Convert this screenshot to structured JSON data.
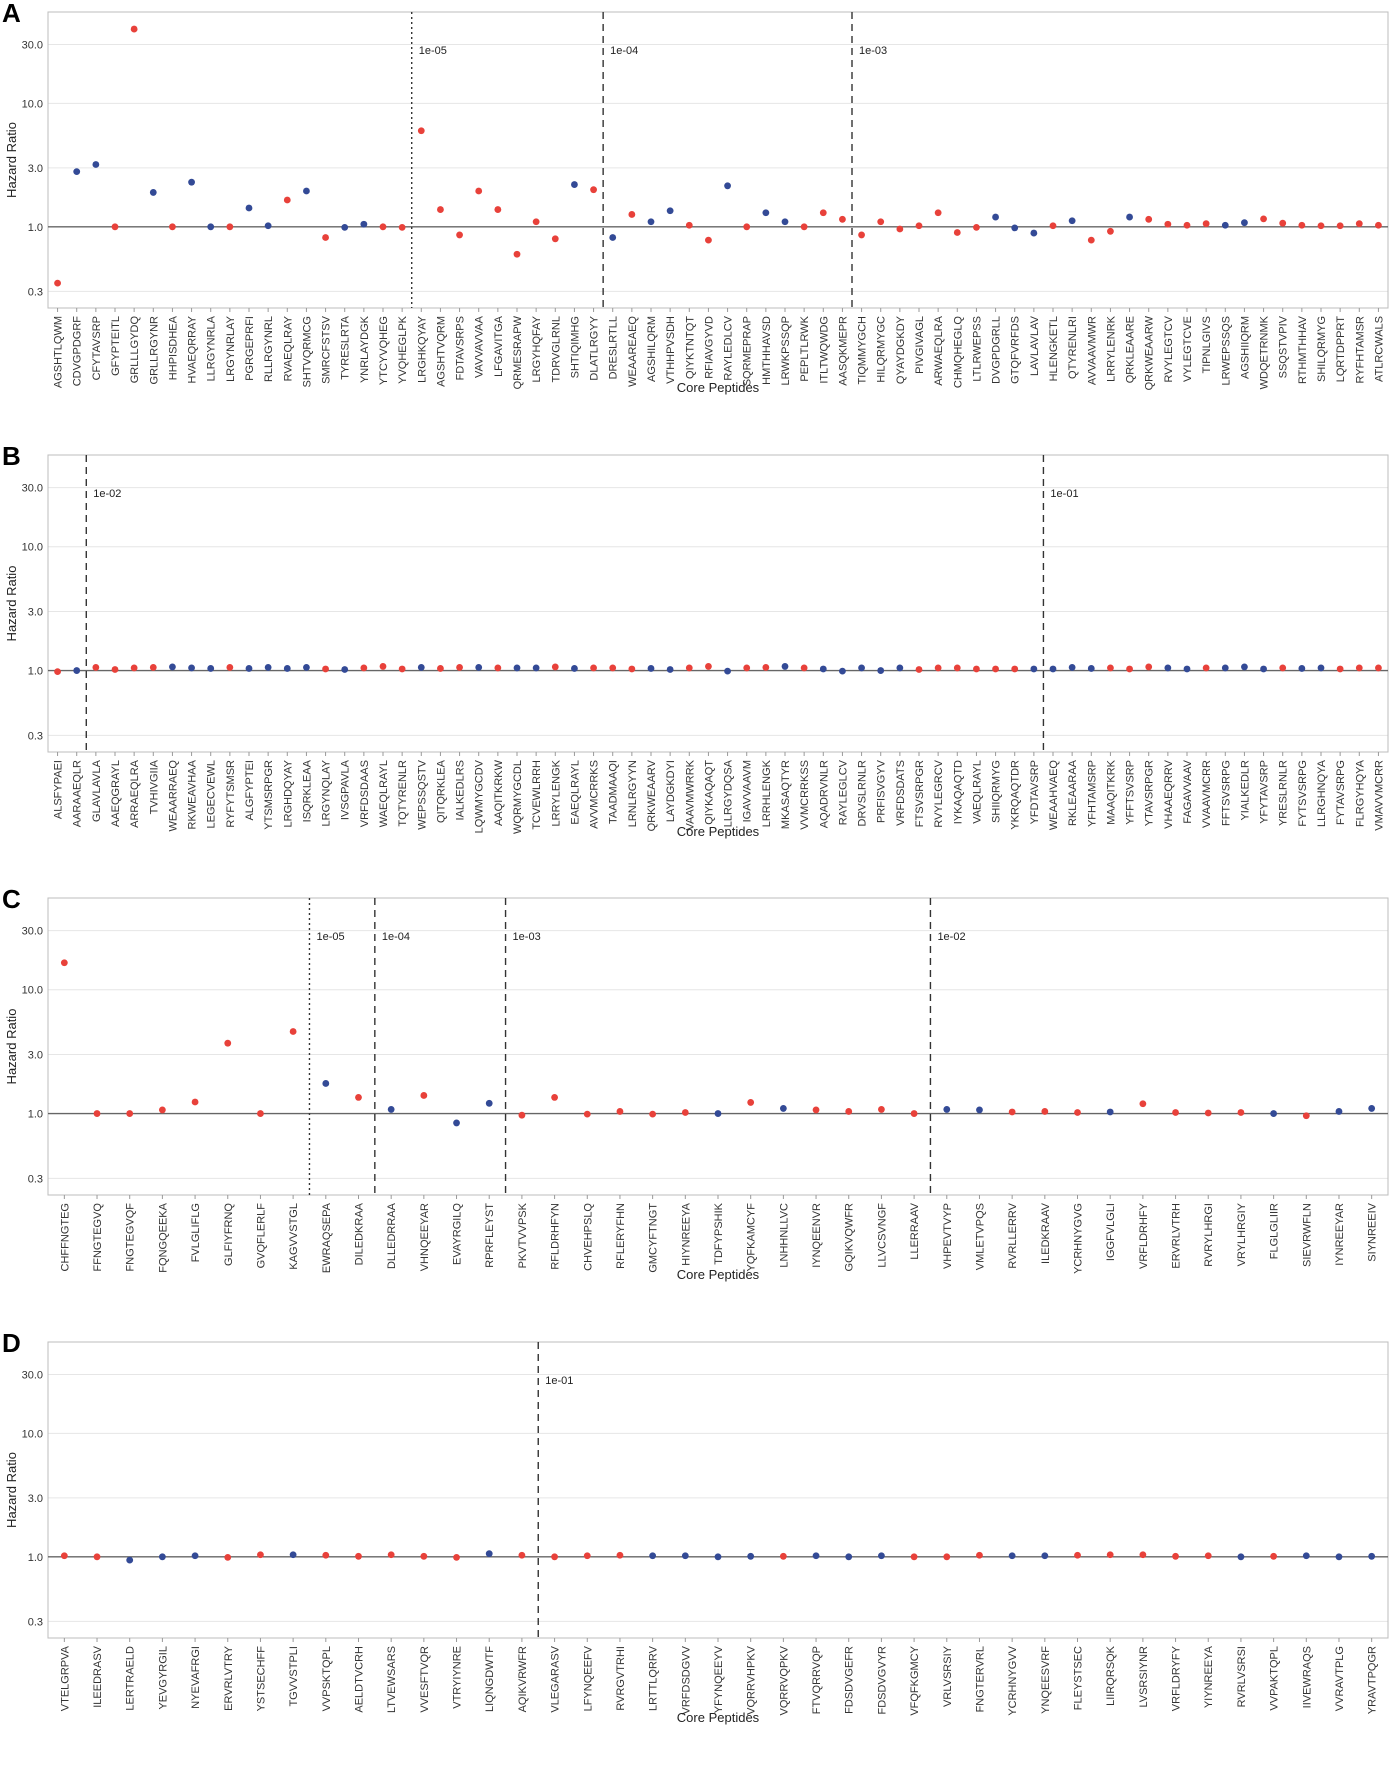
{
  "colors": {
    "red": "#e8413a",
    "blue": "#334a96"
  },
  "chart_data": [
    {
      "panel": "A",
      "type": "scatter",
      "xlabel": "Core Peptides",
      "ylabel": "Hazard Ratio",
      "yscale": "log",
      "ylim": [
        0.22,
        55
      ],
      "yticks": [
        "0.3",
        "1.0",
        "3.0",
        "10.0",
        "30.0"
      ],
      "categories": [
        "AGSHTLQWM",
        "CDVGPDGRF",
        "CFYTAVSRP",
        "GFYPTEITL",
        "GRLLLGYDQ",
        "GRLLRGYNR",
        "HHPISDHEA",
        "HVAEQRRAY",
        "LLRGYNRLA",
        "LRGYNRLAY",
        "PGRGEPRFI",
        "RLLRGYNRL",
        "RVAEQLRAY",
        "SHTVQRMCG",
        "SMRCFSTSV",
        "TYRESLRTA",
        "YNRLAYDGK",
        "YTCYVQHEG",
        "YVQHEGLPK",
        "LRGHKQYAY",
        "AGSHTVQRM",
        "FDTAVSRPS",
        "VAVVAVVAA",
        "LFGAVITGA",
        "QRMESRAPW",
        "LRGYHQFAY",
        "TDRVGLRNL",
        "SHTIQIMHG",
        "DLATLRGYY",
        "DRESLRTLL",
        "WEAAREAEQ",
        "AGSHILQRM",
        "VTHHPVSDH",
        "QIYKTNTQT",
        "RFIAVGYVD",
        "RAYLEDLCV",
        "SQRMEPRAP",
        "HMTHHAVSD",
        "LRWKPSSQP",
        "PEPLTLRWK",
        "ITLTWQWDG",
        "AASQKMEPR",
        "TIQMMYGCH",
        "HILQRMYGC",
        "QYAYDGKDY",
        "PIVGIVAGL",
        "ARWAEQLRA",
        "CHMQHEGLQ",
        "LTLRWEPSS",
        "DVGPDGRLL",
        "GTQFVRFDS",
        "LAVLAVLAV",
        "HLENGKETL",
        "QTYRENLRI",
        "AVVAAVMWR",
        "LRRYLENRK",
        "QRKLEAARE",
        "QRKWEAARW",
        "RVYLEGTCV",
        "VYLEGTCVE",
        "TIPNLGIVS",
        "LRWEPSSQS",
        "AGSHIIQRM",
        "WDQETRNMK",
        "SSQSTVPIV",
        "RTHMTHHAV",
        "SHILQRMYG",
        "LQRTDPPRT",
        "RYFHTAMSR",
        "ATLRCWALS"
      ],
      "values": [
        0.35,
        2.8,
        3.2,
        1.0,
        40.0,
        1.9,
        1.0,
        2.3,
        1.0,
        1.0,
        1.42,
        1.02,
        1.65,
        1.95,
        0.82,
        0.99,
        1.05,
        1.0,
        0.99,
        6.0,
        1.38,
        0.86,
        1.95,
        1.38,
        0.6,
        1.1,
        0.8,
        2.2,
        2.0,
        0.82,
        1.26,
        1.1,
        1.35,
        1.03,
        0.78,
        2.15,
        1.0,
        1.3,
        1.1,
        1.0,
        1.3,
        1.15,
        0.86,
        1.1,
        0.96,
        1.02,
        1.3,
        0.9,
        0.99,
        1.2,
        0.98,
        0.89,
        1.02,
        1.12,
        0.78,
        0.92,
        1.2,
        1.15,
        1.05,
        1.03,
        1.06,
        1.03,
        1.08,
        1.16,
        1.07,
        1.03,
        1.02,
        1.02,
        1.06,
        1.03
      ],
      "colors": [
        "red",
        "blue",
        "blue",
        "red",
        "red",
        "blue",
        "red",
        "blue",
        "blue",
        "red",
        "blue",
        "blue",
        "red",
        "blue",
        "red",
        "blue",
        "blue",
        "red",
        "red",
        "red",
        "red",
        "red",
        "red",
        "red",
        "red",
        "red",
        "red",
        "blue",
        "red",
        "blue",
        "red",
        "blue",
        "blue",
        "red",
        "red",
        "blue",
        "red",
        "blue",
        "blue",
        "red",
        "red",
        "red",
        "red",
        "red",
        "red",
        "red",
        "red",
        "red",
        "red",
        "blue",
        "blue",
        "blue",
        "red",
        "blue",
        "red",
        "red",
        "blue",
        "red",
        "red",
        "red",
        "red",
        "blue",
        "blue",
        "red",
        "red",
        "red",
        "red",
        "red",
        "red",
        "red"
      ],
      "thresholds": [
        {
          "after": 18,
          "label": "1e-05",
          "style": "dotted"
        },
        {
          "after": 28,
          "label": "1e-04",
          "style": "dashed"
        },
        {
          "after": 41,
          "label": "1e-03",
          "style": "dashed"
        }
      ]
    },
    {
      "panel": "B",
      "type": "scatter",
      "xlabel": "Core Peptides",
      "ylabel": "Hazard Ratio",
      "yscale": "log",
      "ylim": [
        0.22,
        55
      ],
      "yticks": [
        "0.3",
        "1.0",
        "3.0",
        "10.0",
        "30.0"
      ],
      "categories": [
        "ALSFYPAEI",
        "AARAAEQLR",
        "GLAVLAVLA",
        "AAEQGRAYL",
        "ARRAEQLRA",
        "TVHIVGIIA",
        "WEAARRAEQ",
        "RKWEAVHAA",
        "LEGECVEWL",
        "RYFYTSMSR",
        "ALGFYPTEI",
        "YTSMSRPGR",
        "LRGHDQYAY",
        "ISQRKLEAA",
        "LRGYNQLAY",
        "IVSGPAVLA",
        "VRFDSDAAS",
        "WAEQLRAYL",
        "TQTYRENLR",
        "WEPSSQSTV",
        "QITQRKLEA",
        "IALKEDLRS",
        "LQWMYGCDV",
        "AAQITKRKW",
        "WQRMYGCDL",
        "TCVEWLRRH",
        "LRRYLENGK",
        "EAEQLRAYL",
        "AVVMCRRKS",
        "TAADMAAQI",
        "LRNLRGYYN",
        "QRKWEAARV",
        "LAYDGKDYI",
        "VAAVMWRRK",
        "QIYKAQAQT",
        "LLRGYDQSA",
        "IGAVVAAVM",
        "LRRHLENGK",
        "MKASAQTYR",
        "VVMCRRKSS",
        "AQADRVNLR",
        "RAYLEGLCV",
        "DRVSLRNLR",
        "PRFISVGYV",
        "VRFDSDATS",
        "FTSVSRPGR",
        "RVYLEGRCV",
        "IYKAQAQTD",
        "VAEQLRAYL",
        "SHIIQRMYG",
        "YKRQAQTDR",
        "YFDTAVSRP",
        "WEAAHVAEQ",
        "RKLEAARAA",
        "YFHTAMSRP",
        "MAAQITKRK",
        "YFFTSVSRP",
        "YTAVSRPGR",
        "VHAAEQRRV",
        "FAGAVVAAV",
        "VVAAVMCRR",
        "FFTSVSRPG",
        "YIALKEDLR",
        "YFYTAVSRP",
        "YRESLRNLR",
        "FYTSVSRPG",
        "LLRGHNQYA",
        "FYTAVSRPG",
        "FLRGYHQYA",
        "VMAVVMCRR"
      ],
      "values": [
        0.98,
        1.0,
        1.06,
        1.02,
        1.05,
        1.06,
        1.07,
        1.05,
        1.04,
        1.06,
        1.04,
        1.06,
        1.04,
        1.06,
        1.03,
        1.02,
        1.05,
        1.08,
        1.03,
        1.06,
        1.04,
        1.06,
        1.06,
        1.05,
        1.05,
        1.05,
        1.07,
        1.04,
        1.05,
        1.05,
        1.03,
        1.04,
        1.02,
        1.05,
        1.08,
        0.99,
        1.05,
        1.06,
        1.08,
        1.05,
        1.03,
        0.99,
        1.05,
        1.0,
        1.05,
        1.02,
        1.05,
        1.05,
        1.03,
        1.03,
        1.03,
        1.03,
        1.03,
        1.06,
        1.04,
        1.05,
        1.03,
        1.07,
        1.05,
        1.03,
        1.05,
        1.05,
        1.07,
        1.03,
        1.05,
        1.04,
        1.05,
        1.03,
        1.05,
        1.05
      ],
      "colors": [
        "red",
        "blue",
        "red",
        "red",
        "red",
        "red",
        "blue",
        "blue",
        "blue",
        "red",
        "blue",
        "blue",
        "blue",
        "blue",
        "red",
        "blue",
        "red",
        "red",
        "red",
        "blue",
        "red",
        "red",
        "blue",
        "red",
        "blue",
        "blue",
        "red",
        "blue",
        "red",
        "red",
        "red",
        "blue",
        "blue",
        "red",
        "red",
        "blue",
        "red",
        "red",
        "blue",
        "red",
        "blue",
        "blue",
        "blue",
        "blue",
        "blue",
        "red",
        "red",
        "red",
        "red",
        "red",
        "red",
        "blue",
        "blue",
        "blue",
        "blue",
        "red",
        "red",
        "red",
        "blue",
        "blue",
        "red",
        "blue",
        "blue",
        "blue",
        "red",
        "blue",
        "blue",
        "red",
        "red",
        "red"
      ],
      "thresholds": [
        {
          "after": 1,
          "label": "1e-02",
          "style": "dashed"
        },
        {
          "after": 51,
          "label": "1e-01",
          "style": "dashed"
        }
      ]
    },
    {
      "panel": "C",
      "type": "scatter",
      "xlabel": "Core Peptides",
      "ylabel": "Hazard Ratio",
      "yscale": "log",
      "ylim": [
        0.22,
        55
      ],
      "yticks": [
        "0.3",
        "1.0",
        "3.0",
        "10.0",
        "30.0"
      ],
      "categories": [
        "CHFFNGTEG",
        "FFNGTEGVQ",
        "FNGTEGVQF",
        "FQNGQEEKA",
        "FVLGLIFLG",
        "GLFIYFRNQ",
        "GVQFLERLF",
        "KAGVVSTGL",
        "EWRAQSEPA",
        "DILEDKRAA",
        "DLLEDRRAA",
        "VHNQEEYAR",
        "EVAYRGILQ",
        "RPRFLEYST",
        "PKVTVVPSK",
        "RFLDRHFYN",
        "CHVEHPSLQ",
        "RFLERYFHN",
        "GMCYFTNGT",
        "HIYNREEYA",
        "TDFYPSHIK",
        "YQFKAMCYF",
        "LNHHNLLVC",
        "IYNQEENVR",
        "GQIKVQWFR",
        "LLVCSVNGF",
        "LLERRAAV",
        "VHPEVTVYP",
        "VMLETVPQS",
        "RVRLLERRV",
        "ILEDKRAAV",
        "YCRHNYGVG",
        "IGGFVLGLI",
        "VRFLDRHFY",
        "ERVRLVTRH",
        "RVRYLHRGI",
        "VRYLHRGIY",
        "FLGLGLIIR",
        "SIEVRWFLN",
        "IYNREEYAR",
        "SIYNREEIV"
      ],
      "values": [
        16.5,
        1.0,
        1.0,
        1.07,
        1.24,
        3.7,
        1.0,
        4.6,
        1.75,
        1.35,
        1.08,
        1.4,
        0.84,
        1.21,
        0.97,
        1.35,
        0.99,
        1.04,
        0.99,
        1.02,
        1.0,
        1.23,
        1.1,
        1.07,
        1.04,
        1.08,
        1.0,
        1.08,
        1.07,
        1.03,
        1.04,
        1.02,
        1.03,
        1.2,
        1.02,
        1.01,
        1.02,
        1.0,
        0.96,
        1.04,
        1.1
      ],
      "colors": [
        "red",
        "red",
        "red",
        "red",
        "red",
        "red",
        "red",
        "red",
        "blue",
        "red",
        "blue",
        "red",
        "blue",
        "blue",
        "red",
        "red",
        "red",
        "red",
        "red",
        "red",
        "blue",
        "red",
        "blue",
        "red",
        "red",
        "red",
        "red",
        "blue",
        "blue",
        "red",
        "red",
        "red",
        "blue",
        "red",
        "red",
        "red",
        "red",
        "blue",
        "red",
        "blue",
        "blue"
      ],
      "thresholds": [
        {
          "after": 7,
          "label": "1e-05",
          "style": "dotted"
        },
        {
          "after": 9,
          "label": "1e-04",
          "style": "dashed"
        },
        {
          "after": 13,
          "label": "1e-03",
          "style": "dashed"
        },
        {
          "after": 26,
          "label": "1e-02",
          "style": "dashed"
        }
      ]
    },
    {
      "panel": "D",
      "type": "scatter",
      "xlabel": "Core Peptides",
      "ylabel": "Hazard Ratio",
      "yscale": "log",
      "ylim": [
        0.22,
        55
      ],
      "yticks": [
        "0.3",
        "1.0",
        "3.0",
        "10.0",
        "30.0"
      ],
      "categories": [
        "VTELGRPVA",
        "ILEEDRASV",
        "LERTRAELD",
        "YEVGYRGIL",
        "NYEVAFRGI",
        "ERVRLVTRY",
        "YSTSECHFF",
        "TGVVSTPLI",
        "VVPSKTQPL",
        "AELDTVCRH",
        "LTVEWSARS",
        "VVESFTVQR",
        "VTRYIYNRE",
        "LIQNGDWTF",
        "AQIKVRWFR",
        "VLEGARASV",
        "LFYNQEEFV",
        "RVRGVTRHI",
        "LRTTLQRRV",
        "VRFDSDGVV",
        "YFYNQEEYV",
        "VQRRVHPKV",
        "VQRRVQPKV",
        "FTVQRRVQP",
        "FDSDVGEFR",
        "FDSDVGVYR",
        "VFQFKGMCY",
        "VRLVSRSIY",
        "FNGTERVRL",
        "YCRHNYGVV",
        "YNQEESVRF",
        "FLEYSTSEC",
        "LIIRQRSQK",
        "LVSRSIYNR",
        "VRFLDRYFY",
        "YIYNREEYA",
        "RVRLVSRSI",
        "VVPAKTQPL",
        "IIVEWRAQS",
        "VVRAVTPLG",
        "YRAVTPQGR"
      ],
      "values": [
        1.02,
        1.0,
        0.94,
        1.0,
        1.02,
        0.99,
        1.04,
        1.04,
        1.03,
        1.01,
        1.04,
        1.01,
        0.99,
        1.06,
        1.03,
        1.0,
        1.02,
        1.03,
        1.02,
        1.02,
        1.0,
        1.01,
        1.01,
        1.02,
        1.0,
        1.02,
        1.0,
        1.0,
        1.03,
        1.02,
        1.02,
        1.03,
        1.04,
        1.04,
        1.01,
        1.02,
        1.0,
        1.01,
        1.02,
        1.0,
        1.01
      ],
      "colors": [
        "red",
        "red",
        "blue",
        "blue",
        "blue",
        "red",
        "red",
        "blue",
        "red",
        "red",
        "red",
        "red",
        "red",
        "blue",
        "red",
        "red",
        "red",
        "red",
        "blue",
        "blue",
        "blue",
        "blue",
        "red",
        "blue",
        "blue",
        "blue",
        "red",
        "red",
        "red",
        "blue",
        "blue",
        "red",
        "red",
        "red",
        "red",
        "red",
        "blue",
        "red",
        "blue",
        "blue",
        "blue"
      ],
      "thresholds": [
        {
          "after": 14,
          "label": "1e-01",
          "style": "dashed"
        }
      ]
    }
  ]
}
